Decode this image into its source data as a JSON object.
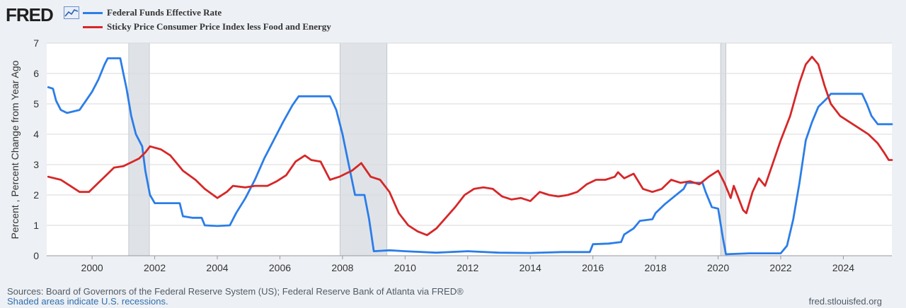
{
  "branding": {
    "logo_text": "FRED",
    "site": "fred.stlouisfed.org"
  },
  "footer": {
    "sources": "Sources: Board of Governors of the Federal Reserve System (US); Federal Reserve Bank of Atlanta via FRED®",
    "recessions_link": "Shaded areas indicate U.S. recessions."
  },
  "colors": {
    "fedfunds": "#2b7de9",
    "sticky_cpi": "#d62728",
    "recession": "#dfe3e8",
    "grid": "#d8d8d8"
  },
  "chart_data": {
    "type": "line",
    "title": "",
    "xlabel": "",
    "ylabel": "Percent , Percent Change from Year Ago",
    "xlim": [
      1998.55,
      2025.55
    ],
    "ylim": [
      0,
      7
    ],
    "yticks": [
      0,
      1,
      2,
      3,
      4,
      5,
      6,
      7
    ],
    "xticks": [
      2000,
      2002,
      2004,
      2006,
      2008,
      2010,
      2012,
      2014,
      2016,
      2018,
      2020,
      2022,
      2024
    ],
    "grid": true,
    "legend": "top-left",
    "recessions": [
      [
        2001.17,
        2001.83
      ],
      [
        2007.92,
        2009.42
      ],
      [
        2020.08,
        2020.25
      ]
    ],
    "series": [
      {
        "name": "Federal Funds Effective Rate",
        "color": "#2b7de9",
        "points": [
          [
            1998.6,
            5.55
          ],
          [
            1998.75,
            5.5
          ],
          [
            1998.85,
            5.1
          ],
          [
            1999.0,
            4.8
          ],
          [
            1999.2,
            4.7
          ],
          [
            1999.4,
            4.75
          ],
          [
            1999.6,
            4.8
          ],
          [
            1999.8,
            5.1
          ],
          [
            2000.0,
            5.4
          ],
          [
            2000.2,
            5.8
          ],
          [
            2000.4,
            6.3
          ],
          [
            2000.5,
            6.5
          ],
          [
            2000.7,
            6.5
          ],
          [
            2000.9,
            6.5
          ],
          [
            2001.0,
            6.0
          ],
          [
            2001.1,
            5.5
          ],
          [
            2001.25,
            4.6
          ],
          [
            2001.4,
            4.0
          ],
          [
            2001.6,
            3.6
          ],
          [
            2001.7,
            2.8
          ],
          [
            2001.85,
            2.0
          ],
          [
            2002.0,
            1.73
          ],
          [
            2002.5,
            1.73
          ],
          [
            2002.8,
            1.73
          ],
          [
            2002.9,
            1.3
          ],
          [
            2003.2,
            1.25
          ],
          [
            2003.5,
            1.25
          ],
          [
            2003.6,
            1.0
          ],
          [
            2004.0,
            0.98
          ],
          [
            2004.4,
            1.0
          ],
          [
            2004.6,
            1.4
          ],
          [
            2004.9,
            1.9
          ],
          [
            2005.2,
            2.5
          ],
          [
            2005.5,
            3.2
          ],
          [
            2005.8,
            3.8
          ],
          [
            2006.1,
            4.4
          ],
          [
            2006.4,
            4.95
          ],
          [
            2006.6,
            5.25
          ],
          [
            2007.0,
            5.25
          ],
          [
            2007.6,
            5.25
          ],
          [
            2007.8,
            4.8
          ],
          [
            2008.0,
            4.0
          ],
          [
            2008.2,
            3.0
          ],
          [
            2008.4,
            2.0
          ],
          [
            2008.7,
            2.0
          ],
          [
            2008.85,
            1.2
          ],
          [
            2009.0,
            0.15
          ],
          [
            2009.5,
            0.18
          ],
          [
            2010.0,
            0.15
          ],
          [
            2011.0,
            0.1
          ],
          [
            2012.0,
            0.15
          ],
          [
            2013.0,
            0.1
          ],
          [
            2014.0,
            0.09
          ],
          [
            2015.0,
            0.12
          ],
          [
            2015.9,
            0.12
          ],
          [
            2016.0,
            0.38
          ],
          [
            2016.5,
            0.4
          ],
          [
            2016.9,
            0.45
          ],
          [
            2017.0,
            0.7
          ],
          [
            2017.3,
            0.9
          ],
          [
            2017.5,
            1.15
          ],
          [
            2017.9,
            1.2
          ],
          [
            2018.0,
            1.4
          ],
          [
            2018.3,
            1.7
          ],
          [
            2018.6,
            1.95
          ],
          [
            2018.9,
            2.2
          ],
          [
            2019.0,
            2.4
          ],
          [
            2019.5,
            2.4
          ],
          [
            2019.6,
            2.1
          ],
          [
            2019.8,
            1.6
          ],
          [
            2020.0,
            1.55
          ],
          [
            2020.15,
            0.6
          ],
          [
            2020.25,
            0.05
          ],
          [
            2021.0,
            0.08
          ],
          [
            2022.0,
            0.08
          ],
          [
            2022.2,
            0.33
          ],
          [
            2022.4,
            1.2
          ],
          [
            2022.6,
            2.4
          ],
          [
            2022.8,
            3.8
          ],
          [
            2023.0,
            4.4
          ],
          [
            2023.2,
            4.9
          ],
          [
            2023.5,
            5.2
          ],
          [
            2023.6,
            5.33
          ],
          [
            2024.6,
            5.33
          ],
          [
            2024.75,
            5.0
          ],
          [
            2024.9,
            4.6
          ],
          [
            2025.1,
            4.33
          ],
          [
            2025.55,
            4.33
          ]
        ]
      },
      {
        "name": "Sticky Price Consumer Price Index less Food and Energy",
        "color": "#d62728",
        "points": [
          [
            1998.6,
            2.6
          ],
          [
            1999.0,
            2.5
          ],
          [
            1999.3,
            2.3
          ],
          [
            1999.6,
            2.1
          ],
          [
            1999.9,
            2.1
          ],
          [
            2000.1,
            2.3
          ],
          [
            2000.4,
            2.6
          ],
          [
            2000.7,
            2.9
          ],
          [
            2001.0,
            2.95
          ],
          [
            2001.3,
            3.1
          ],
          [
            2001.5,
            3.2
          ],
          [
            2001.7,
            3.4
          ],
          [
            2001.85,
            3.6
          ],
          [
            2002.2,
            3.5
          ],
          [
            2002.5,
            3.3
          ],
          [
            2002.9,
            2.8
          ],
          [
            2003.3,
            2.5
          ],
          [
            2003.6,
            2.2
          ],
          [
            2004.0,
            1.9
          ],
          [
            2004.3,
            2.1
          ],
          [
            2004.5,
            2.3
          ],
          [
            2004.9,
            2.25
          ],
          [
            2005.2,
            2.3
          ],
          [
            2005.6,
            2.3
          ],
          [
            2005.9,
            2.45
          ],
          [
            2006.2,
            2.65
          ],
          [
            2006.5,
            3.1
          ],
          [
            2006.8,
            3.3
          ],
          [
            2007.0,
            3.15
          ],
          [
            2007.3,
            3.1
          ],
          [
            2007.6,
            2.5
          ],
          [
            2007.9,
            2.6
          ],
          [
            2008.1,
            2.7
          ],
          [
            2008.3,
            2.8
          ],
          [
            2008.6,
            3.05
          ],
          [
            2008.9,
            2.6
          ],
          [
            2009.2,
            2.5
          ],
          [
            2009.5,
            2.1
          ],
          [
            2009.8,
            1.4
          ],
          [
            2010.1,
            1.0
          ],
          [
            2010.4,
            0.8
          ],
          [
            2010.7,
            0.68
          ],
          [
            2011.0,
            0.9
          ],
          [
            2011.3,
            1.25
          ],
          [
            2011.6,
            1.6
          ],
          [
            2011.9,
            2.0
          ],
          [
            2012.2,
            2.2
          ],
          [
            2012.5,
            2.25
          ],
          [
            2012.8,
            2.2
          ],
          [
            2013.1,
            1.95
          ],
          [
            2013.4,
            1.85
          ],
          [
            2013.7,
            1.9
          ],
          [
            2014.0,
            1.8
          ],
          [
            2014.3,
            2.1
          ],
          [
            2014.6,
            2.0
          ],
          [
            2014.9,
            1.95
          ],
          [
            2015.2,
            2.0
          ],
          [
            2015.5,
            2.1
          ],
          [
            2015.8,
            2.35
          ],
          [
            2016.1,
            2.5
          ],
          [
            2016.4,
            2.5
          ],
          [
            2016.7,
            2.6
          ],
          [
            2016.8,
            2.75
          ],
          [
            2017.0,
            2.55
          ],
          [
            2017.3,
            2.7
          ],
          [
            2017.6,
            2.2
          ],
          [
            2017.9,
            2.1
          ],
          [
            2018.2,
            2.2
          ],
          [
            2018.5,
            2.5
          ],
          [
            2018.8,
            2.4
          ],
          [
            2019.1,
            2.45
          ],
          [
            2019.4,
            2.35
          ],
          [
            2019.7,
            2.6
          ],
          [
            2020.0,
            2.8
          ],
          [
            2020.2,
            2.4
          ],
          [
            2020.4,
            1.9
          ],
          [
            2020.5,
            2.3
          ],
          [
            2020.8,
            1.5
          ],
          [
            2020.9,
            1.4
          ],
          [
            2021.1,
            2.1
          ],
          [
            2021.3,
            2.55
          ],
          [
            2021.5,
            2.3
          ],
          [
            2021.8,
            3.2
          ],
          [
            2022.0,
            3.8
          ],
          [
            2022.3,
            4.6
          ],
          [
            2022.6,
            5.7
          ],
          [
            2022.8,
            6.3
          ],
          [
            2023.0,
            6.55
          ],
          [
            2023.2,
            6.3
          ],
          [
            2023.4,
            5.6
          ],
          [
            2023.6,
            5.0
          ],
          [
            2023.9,
            4.6
          ],
          [
            2024.2,
            4.4
          ],
          [
            2024.5,
            4.2
          ],
          [
            2024.8,
            4.0
          ],
          [
            2025.1,
            3.7
          ],
          [
            2025.3,
            3.4
          ],
          [
            2025.45,
            3.15
          ],
          [
            2025.55,
            3.15
          ]
        ]
      }
    ]
  }
}
